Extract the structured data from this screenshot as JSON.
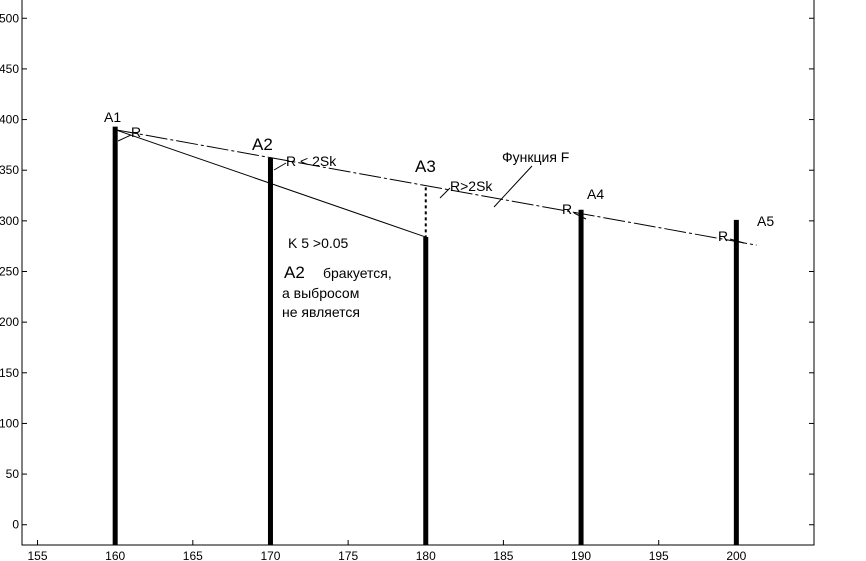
{
  "chart_data": {
    "type": "bar",
    "xlim": [
      154,
      205
    ],
    "ylim": [
      -20,
      520
    ],
    "x_ticks": [
      155,
      160,
      165,
      170,
      175,
      180,
      185,
      190,
      195,
      200
    ],
    "y_ticks": [
      0,
      50,
      100,
      150,
      200,
      250,
      300,
      350,
      400,
      450,
      500
    ],
    "grid": false,
    "bars": [
      {
        "x": 160,
        "value": 393
      },
      {
        "x": 170,
        "value": 362
      },
      {
        "x": 180,
        "value": 284
      },
      {
        "x": 190,
        "value": 311
      },
      {
        "x": 200,
        "value": 301
      }
    ],
    "trend_lines": [
      {
        "name": "Функция F",
        "style": "dashdot",
        "points": [
          [
            160,
            390
          ],
          [
            201.3,
            276
          ]
        ]
      },
      {
        "style": "solid",
        "points": [
          [
            160,
            390
          ],
          [
            180,
            284
          ]
        ]
      }
    ],
    "residual_marker": {
      "style": "dotted",
      "x": 180,
      "from": 284,
      "to": 333
    },
    "annotations": {
      "a1": "A1",
      "a2": "A2",
      "a3": "A3",
      "a4": "A4",
      "a5": "A5",
      "r": "R",
      "r_lt": "R < 2Sk",
      "r_gt": "R>2Sk",
      "function": "Функция F",
      "k5": "K 5 >0.05",
      "note_a2": "A2",
      "note_rejected": "бракуется,",
      "note_line2": "а выбросом",
      "note_line3": "не является"
    }
  }
}
